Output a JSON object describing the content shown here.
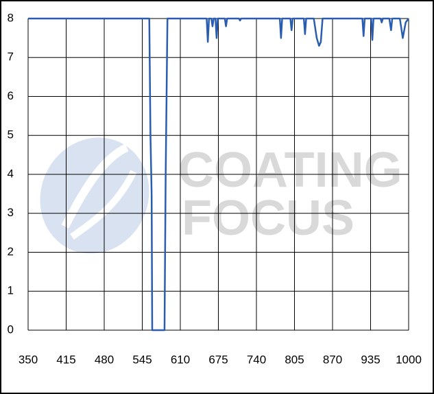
{
  "chart_data": {
    "type": "line",
    "watermark": [
      "COATING",
      "FOCUS"
    ],
    "xlim": [
      350,
      1000
    ],
    "xticks": [
      350,
      415,
      480,
      545,
      610,
      675,
      740,
      805,
      870,
      935,
      1000
    ],
    "ylim": [
      0,
      8
    ],
    "yticks": [
      0,
      1,
      2,
      3,
      4,
      5,
      6,
      7,
      8
    ],
    "grid": true,
    "series": [
      {
        "color": "#2a5db0",
        "x": [
          350,
          557,
          559,
          561,
          562,
          583,
          585,
          588,
          655,
          657,
          659,
          663,
          665,
          667,
          670,
          672,
          674,
          686,
          688,
          690,
          710,
          712,
          714,
          780,
          782,
          784,
          798,
          800,
          802,
          821,
          823,
          825,
          838,
          843,
          847,
          850,
          853,
          921,
          923,
          925,
          936,
          938,
          940,
          952,
          954,
          956,
          967,
          970,
          972,
          985,
          990,
          995,
          1000
        ],
        "values": [
          8,
          8,
          5,
          3.5,
          0,
          0,
          4,
          8,
          8,
          7.4,
          8,
          8,
          7.8,
          8,
          8,
          7.5,
          8,
          8,
          7.8,
          8,
          8,
          7.95,
          8,
          8,
          7.5,
          8,
          8,
          7.7,
          8,
          8,
          7.6,
          8,
          8,
          7.5,
          7.3,
          7.4,
          8,
          8,
          7.55,
          8,
          8,
          7.45,
          8,
          8,
          7.9,
          8,
          8,
          7.7,
          8,
          8,
          7.5,
          7.9,
          8
        ]
      }
    ]
  }
}
